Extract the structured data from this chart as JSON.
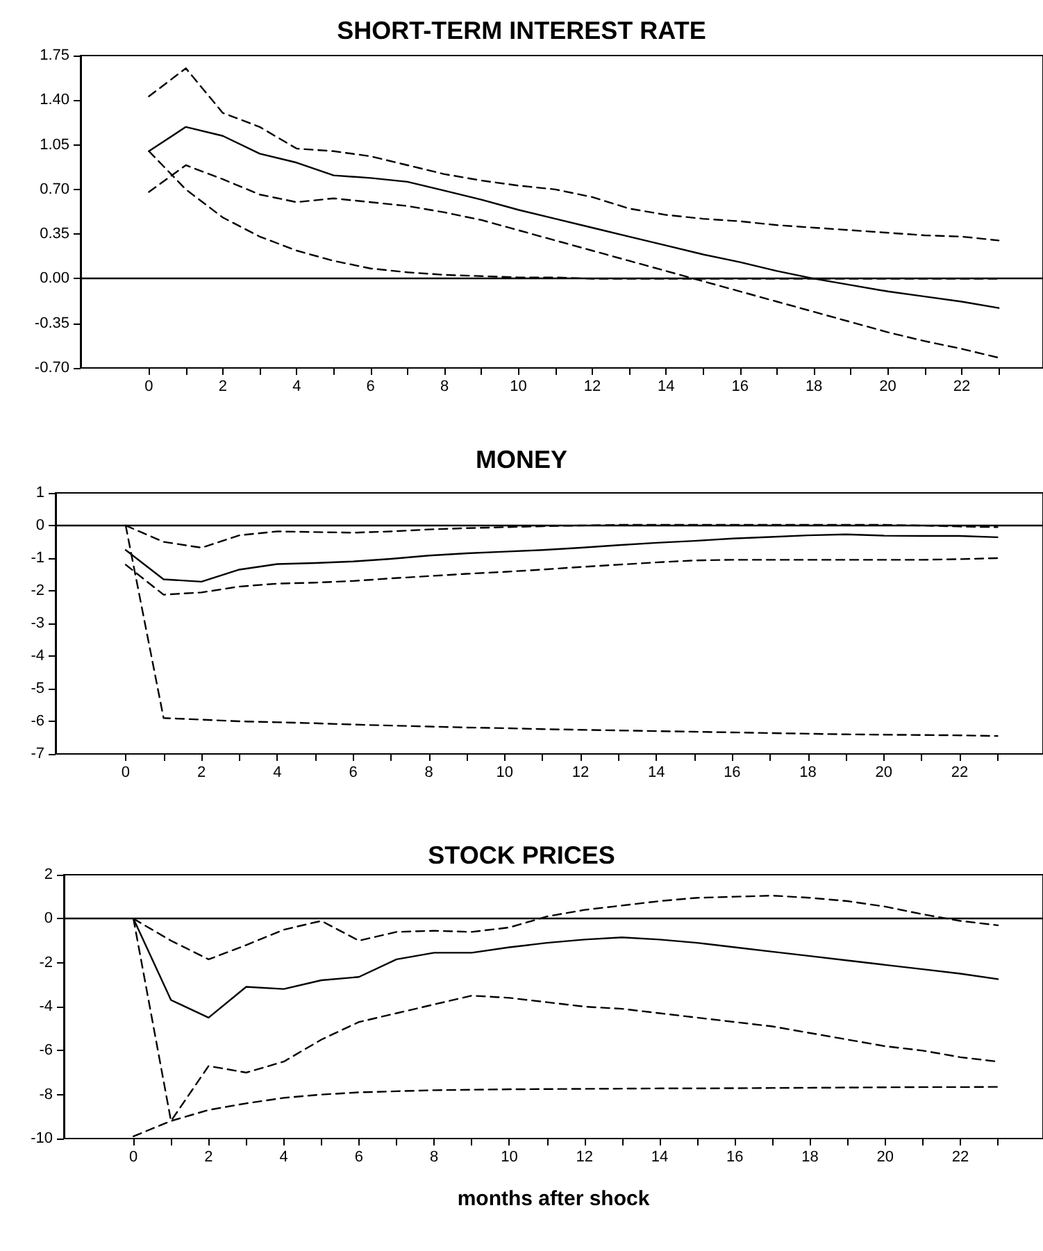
{
  "chart_data": [
    {
      "type": "line",
      "title": "SHORT-TERM INTEREST RATE",
      "x": [
        0,
        1,
        2,
        3,
        4,
        5,
        6,
        7,
        8,
        9,
        10,
        11,
        12,
        13,
        14,
        15,
        16,
        17,
        18,
        19,
        20,
        21,
        22,
        23
      ],
      "series": [
        {
          "color": "#000000",
          "line_style": "solid",
          "values": [
            1.0,
            1.19,
            1.12,
            0.98,
            0.91,
            0.81,
            0.79,
            0.76,
            0.69,
            0.62,
            0.54,
            0.47,
            0.4,
            0.33,
            0.26,
            0.19,
            0.13,
            0.06,
            0.0,
            -0.05,
            -0.1,
            -0.14,
            -0.18,
            -0.23
          ]
        },
        {
          "color": "#000000",
          "line_style": "dashed",
          "values": [
            1.43,
            1.65,
            1.3,
            1.19,
            1.02,
            1.0,
            0.96,
            0.89,
            0.82,
            0.77,
            0.73,
            0.7,
            0.64,
            0.55,
            0.5,
            0.47,
            0.45,
            0.42,
            0.4,
            0.38,
            0.36,
            0.34,
            0.33,
            0.3
          ]
        },
        {
          "color": "#000000",
          "line_style": "dashed",
          "values": [
            0.68,
            0.89,
            0.78,
            0.66,
            0.6,
            0.63,
            0.6,
            0.57,
            0.52,
            0.46,
            0.38,
            0.3,
            0.22,
            0.14,
            0.06,
            -0.02,
            -0.1,
            -0.18,
            -0.26,
            -0.34,
            -0.42,
            -0.49,
            -0.55,
            -0.62
          ]
        },
        {
          "color": "#000000",
          "line_style": "dashed",
          "values": [
            1.0,
            0.7,
            0.48,
            0.33,
            0.22,
            0.14,
            0.08,
            0.05,
            0.03,
            0.02,
            0.01,
            0.01,
            0.0,
            0.0,
            0.0,
            0.0,
            0.0,
            0.0,
            0.0,
            0.0,
            0.0,
            0.0,
            0.0,
            0.0
          ]
        }
      ],
      "xlim": [
        -1.85,
        24.2
      ],
      "xticks": [
        0,
        {
          "value": 1,
          "label": null
        },
        2,
        {
          "value": 3,
          "label": null
        },
        4,
        {
          "value": 5,
          "label": null
        },
        6,
        {
          "value": 7,
          "label": null
        },
        8,
        {
          "value": 9,
          "label": null
        },
        10,
        {
          "value": 11,
          "label": null
        },
        12,
        {
          "value": 13,
          "label": null
        },
        14,
        {
          "value": 15,
          "label": null
        },
        16,
        {
          "value": 17,
          "label": null
        },
        18,
        {
          "value": 19,
          "label": null
        },
        20,
        {
          "value": 21,
          "label": null
        },
        22,
        {
          "value": 23,
          "label": null
        }
      ],
      "ylim": [
        -0.7,
        1.75
      ],
      "yticks": [
        {
          "value": -0.7,
          "label": "-0.70"
        },
        {
          "value": -0.35,
          "label": "-0.35"
        },
        {
          "value": 0,
          "label": "0.00"
        },
        {
          "value": 0.35,
          "label": "0.35"
        },
        {
          "value": 0.7,
          "label": "0.70"
        },
        {
          "value": 1.05,
          "label": "1.05"
        },
        {
          "value": 1.4,
          "label": "1.40"
        },
        {
          "value": 1.75,
          "label": "1.75"
        }
      ],
      "ref_lines": [
        {
          "axis": "y",
          "value": 0,
          "color": "#000000",
          "line_style": "solid"
        }
      ],
      "grid": false
    },
    {
      "type": "line",
      "title": "MONEY",
      "x": [
        0,
        1,
        2,
        3,
        4,
        5,
        6,
        7,
        8,
        9,
        10,
        11,
        12,
        13,
        14,
        15,
        16,
        17,
        18,
        19,
        20,
        21,
        22,
        23
      ],
      "series": [
        {
          "color": "#000000",
          "line_style": "solid",
          "values": [
            -0.75,
            -1.65,
            -1.72,
            -1.35,
            -1.18,
            -1.15,
            -1.1,
            -1.02,
            -0.92,
            -0.85,
            -0.8,
            -0.75,
            -0.68,
            -0.6,
            -0.53,
            -0.47,
            -0.4,
            -0.35,
            -0.3,
            -0.27,
            -0.31,
            -0.32,
            -0.32,
            -0.36
          ]
        },
        {
          "color": "#000000",
          "line_style": "dashed",
          "values": [
            0,
            -0.5,
            -0.68,
            -0.3,
            -0.18,
            -0.2,
            -0.22,
            -0.18,
            -0.12,
            -0.08,
            -0.05,
            -0.02,
            0,
            0.02,
            0.02,
            0.02,
            0.02,
            0.02,
            0.02,
            0.02,
            0.02,
            0,
            -0.03,
            -0.05
          ]
        },
        {
          "color": "#000000",
          "line_style": "dashed",
          "values": [
            -1.2,
            -2.12,
            -2.05,
            -1.87,
            -1.78,
            -1.75,
            -1.7,
            -1.62,
            -1.55,
            -1.48,
            -1.42,
            -1.35,
            -1.27,
            -1.2,
            -1.13,
            -1.07,
            -1.05,
            -1.05,
            -1.05,
            -1.05,
            -1.05,
            -1.05,
            -1.03,
            -1.0
          ]
        },
        {
          "color": "#000000",
          "line_style": "dashed",
          "values": [
            0,
            -5.9,
            -5.95,
            -6.0,
            -6.03,
            -6.06,
            -6.1,
            -6.13,
            -6.16,
            -6.19,
            -6.21,
            -6.24,
            -6.26,
            -6.28,
            -6.3,
            -6.32,
            -6.34,
            -6.36,
            -6.38,
            -6.4,
            -6.41,
            -6.42,
            -6.43,
            -6.45
          ]
        }
      ],
      "xlim": [
        -1.85,
        24.2
      ],
      "xticks": [
        0,
        {
          "value": 1,
          "label": null
        },
        2,
        {
          "value": 3,
          "label": null
        },
        4,
        {
          "value": 5,
          "label": null
        },
        6,
        {
          "value": 7,
          "label": null
        },
        8,
        {
          "value": 9,
          "label": null
        },
        10,
        {
          "value": 11,
          "label": null
        },
        12,
        {
          "value": 13,
          "label": null
        },
        14,
        {
          "value": 15,
          "label": null
        },
        16,
        {
          "value": 17,
          "label": null
        },
        18,
        {
          "value": 19,
          "label": null
        },
        20,
        {
          "value": 21,
          "label": null
        },
        22,
        {
          "value": 23,
          "label": null
        }
      ],
      "ylim": [
        -7,
        1
      ],
      "yticks": [
        -7,
        -6,
        -5,
        -4,
        -3,
        -2,
        -1,
        0,
        1
      ],
      "ref_lines": [
        {
          "axis": "y",
          "value": 0,
          "color": "#000000",
          "line_style": "solid"
        }
      ],
      "grid": false
    },
    {
      "type": "line",
      "title": "STOCK PRICES",
      "xlabel": "months after shock",
      "x": [
        0,
        1,
        2,
        3,
        4,
        5,
        6,
        7,
        8,
        9,
        10,
        11,
        12,
        13,
        14,
        15,
        16,
        17,
        18,
        19,
        20,
        21,
        22,
        23
      ],
      "series": [
        {
          "color": "#000000",
          "line_style": "solid",
          "values": [
            0,
            -3.7,
            -4.5,
            -3.1,
            -3.2,
            -2.8,
            -2.65,
            -1.85,
            -1.55,
            -1.55,
            -1.3,
            -1.1,
            -0.95,
            -0.85,
            -0.95,
            -1.1,
            -1.3,
            -1.5,
            -1.7,
            -1.9,
            -2.1,
            -2.3,
            -2.5,
            -2.75
          ]
        },
        {
          "color": "#000000",
          "line_style": "dashed",
          "values": [
            0,
            -1.0,
            -1.85,
            -1.2,
            -0.5,
            -0.1,
            -1.0,
            -0.6,
            -0.55,
            -0.6,
            -0.4,
            0.1,
            0.4,
            0.6,
            0.8,
            0.95,
            1.0,
            1.05,
            0.95,
            0.8,
            0.55,
            0.2,
            -0.1,
            -0.3
          ]
        },
        {
          "color": "#000000",
          "line_style": "dashed",
          "values": [
            0,
            -9.2,
            -6.7,
            -7.0,
            -6.5,
            -5.5,
            -4.7,
            -4.3,
            -3.9,
            -3.5,
            -3.6,
            -3.8,
            -4.0,
            -4.1,
            -4.3,
            -4.5,
            -4.7,
            -4.9,
            -5.2,
            -5.5,
            -5.8,
            -6.0,
            -6.3,
            -6.5
          ]
        },
        {
          "color": "#000000",
          "line_style": "dashed",
          "values": [
            -9.9,
            -9.2,
            -8.7,
            -8.4,
            -8.15,
            -8.0,
            -7.9,
            -7.85,
            -7.8,
            -7.78,
            -7.76,
            -7.75,
            -7.74,
            -7.73,
            -7.72,
            -7.72,
            -7.71,
            -7.7,
            -7.69,
            -7.68,
            -7.67,
            -7.66,
            -7.66,
            -7.65
          ]
        }
      ],
      "xlim": [
        -1.85,
        24.2
      ],
      "xticks": [
        0,
        {
          "value": 1,
          "label": null
        },
        2,
        {
          "value": 3,
          "label": null
        },
        4,
        {
          "value": 5,
          "label": null
        },
        6,
        {
          "value": 7,
          "label": null
        },
        8,
        {
          "value": 9,
          "label": null
        },
        10,
        {
          "value": 11,
          "label": null
        },
        12,
        {
          "value": 13,
          "label": null
        },
        14,
        {
          "value": 15,
          "label": null
        },
        16,
        {
          "value": 17,
          "label": null
        },
        18,
        {
          "value": 19,
          "label": null
        },
        20,
        {
          "value": 21,
          "label": null
        },
        22,
        {
          "value": 23,
          "label": null
        }
      ],
      "ylim": [
        -10,
        2
      ],
      "yticks": [
        -10,
        -8,
        -6,
        -4,
        -2,
        0,
        2
      ],
      "ref_lines": [
        {
          "axis": "y",
          "value": 0,
          "color": "#000000",
          "line_style": "solid"
        }
      ],
      "grid": false
    }
  ]
}
